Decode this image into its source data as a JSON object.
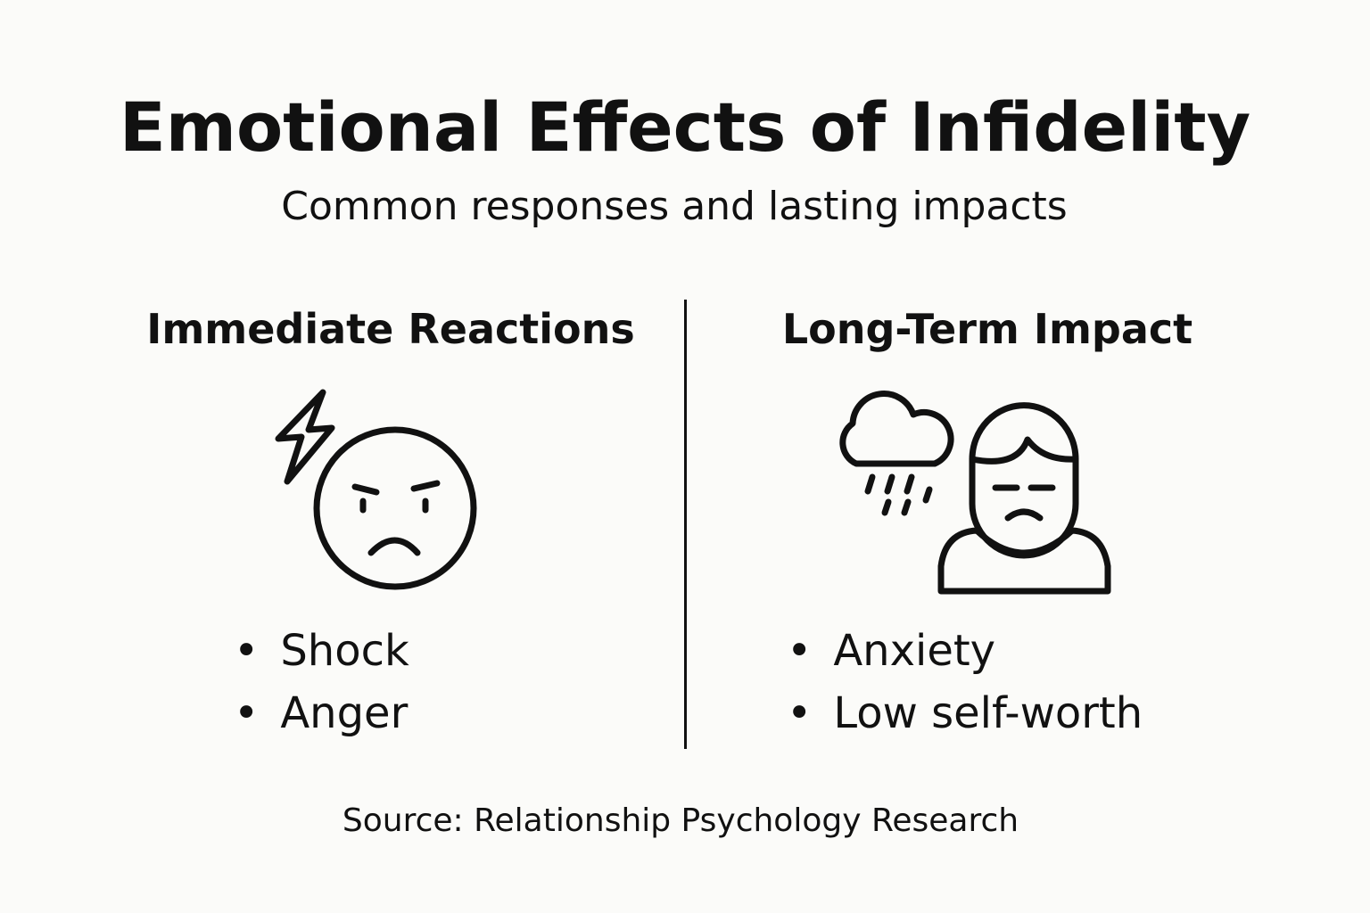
{
  "header": {
    "title": "Emotional Effects of Infidelity",
    "subtitle": "Common responses and lasting impacts"
  },
  "columns": [
    {
      "heading": "Immediate Reactions",
      "items": [
        "Shock",
        "Anger"
      ]
    },
    {
      "heading": "Long-Term Impact",
      "items": [
        "Anxiety",
        "Low self-worth"
      ]
    }
  ],
  "footer": {
    "source": "Source: Relationship Psychology Research"
  }
}
